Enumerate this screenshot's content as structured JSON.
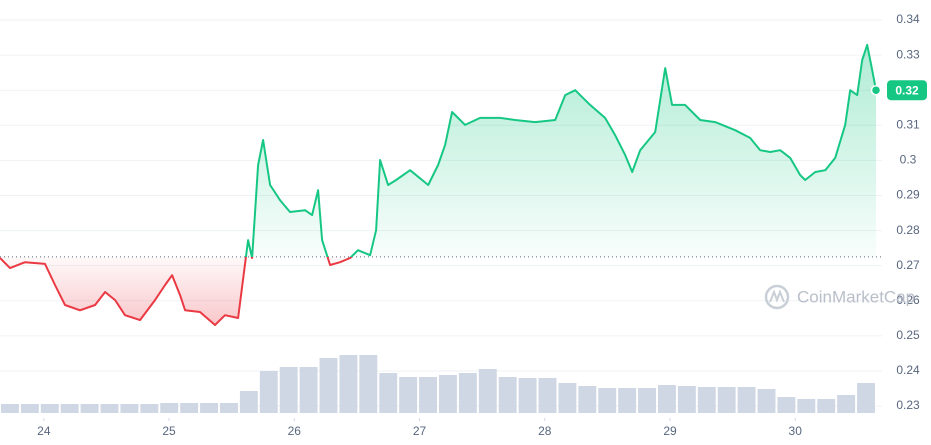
{
  "chart_data": {
    "type": "line",
    "x": [
      23.65,
      23.73,
      23.85,
      24.009,
      24.089,
      24.169,
      24.289,
      24.409,
      24.489,
      24.569,
      24.648,
      24.768,
      24.888,
      24.968,
      25.024,
      25.088,
      25.128,
      25.247,
      25.367,
      25.447,
      25.551,
      25.631,
      25.663,
      25.711,
      25.751,
      25.807,
      25.886,
      25.966,
      26.086,
      26.142,
      26.19,
      26.222,
      26.286,
      26.366,
      26.446,
      26.509,
      26.605,
      26.653,
      26.685,
      26.749,
      26.813,
      26.925,
      27.069,
      27.148,
      27.204,
      27.26,
      27.364,
      27.484,
      27.644,
      27.763,
      27.923,
      28.083,
      28.163,
      28.243,
      28.362,
      28.482,
      28.562,
      28.642,
      28.698,
      28.762,
      28.882,
      28.962,
      29.017,
      29.121,
      29.241,
      29.361,
      29.521,
      29.64,
      29.72,
      29.8,
      29.88,
      29.96,
      30.04,
      30.08,
      30.16,
      30.24,
      30.319,
      30.399,
      30.439,
      30.495,
      30.535,
      30.575,
      30.615,
      30.645
    ],
    "series": [
      {
        "values": [
          0.2722,
          0.2693,
          0.271,
          0.2705,
          0.2645,
          0.2588,
          0.2573,
          0.2588,
          0.2625,
          0.2602,
          0.2559,
          0.2545,
          0.2602,
          0.2645,
          0.2673,
          0.2616,
          0.2573,
          0.2568,
          0.2531,
          0.2559,
          0.2551,
          0.2773,
          0.2722,
          0.2987,
          0.3058,
          0.293,
          0.2887,
          0.2853,
          0.2858,
          0.2844,
          0.2915,
          0.2773,
          0.2702,
          0.271,
          0.2722,
          0.2744,
          0.273,
          0.2801,
          0.3001,
          0.293,
          0.2944,
          0.2972,
          0.293,
          0.2987,
          0.3044,
          0.3138,
          0.3101,
          0.3121,
          0.3121,
          0.3115,
          0.3109,
          0.3115,
          0.3186,
          0.32,
          0.3158,
          0.3121,
          0.3072,
          0.3015,
          0.2967,
          0.3029,
          0.3081,
          0.3263,
          0.3158,
          0.3158,
          0.3115,
          0.3109,
          0.3086,
          0.3064,
          0.3029,
          0.3024,
          0.3029,
          0.3007,
          0.2958,
          0.2944,
          0.2967,
          0.2972,
          0.3007,
          0.3101,
          0.32,
          0.3186,
          0.3286,
          0.3329,
          0.3257,
          0.32
        ],
        "up_color": "#16c784",
        "down_color": "#ea3943"
      }
    ],
    "baseline": 0.2725,
    "last_label": "0.32",
    "volume": {
      "color": "#cfd6e4",
      "values": [
        9,
        9,
        9,
        9,
        9,
        9,
        9,
        9,
        10,
        10,
        10,
        10,
        22,
        42,
        46,
        46,
        55,
        58,
        58,
        40,
        36,
        36,
        38,
        40,
        44,
        36,
        35,
        35,
        30,
        27,
        25,
        25,
        25,
        28,
        27,
        26,
        26,
        26,
        24,
        16,
        14,
        14,
        18,
        30
      ]
    },
    "xlim": [
      23.65,
      30.645
    ],
    "xticks": [
      24,
      25,
      26,
      27,
      28,
      29,
      30
    ],
    "ylim": [
      0.2266,
      0.3457
    ],
    "yticks": [
      0.23,
      0.24,
      0.25,
      0.26,
      0.27,
      0.28,
      0.29,
      0.3,
      0.31,
      0.32,
      0.33,
      0.34
    ],
    "grid": true,
    "watermark": "CoinMarketCap"
  }
}
